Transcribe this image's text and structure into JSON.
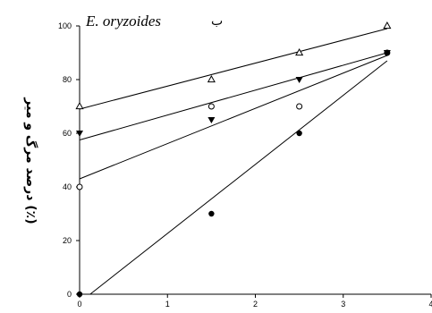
{
  "chart_data": {
    "type": "scatter",
    "title": "E. oryzoides",
    "panel_label": "ب",
    "xlabel": "",
    "ylabel": "درصد مرگ و میر (٪)",
    "xlim": [
      0,
      4
    ],
    "ylim": [
      0,
      100
    ],
    "x_ticks": [
      0,
      1,
      2,
      3,
      4
    ],
    "y_ticks": [
      0,
      20,
      40,
      60,
      80,
      100
    ],
    "grid": false,
    "series": [
      {
        "marker": "open-triangle",
        "points": [
          [
            0,
            70
          ],
          [
            1.5,
            80
          ],
          [
            2.5,
            90
          ],
          [
            3.5,
            100
          ]
        ],
        "fit_line": [
          [
            0,
            69
          ],
          [
            3.5,
            99
          ]
        ]
      },
      {
        "marker": "open-circle",
        "points": [
          [
            0,
            40
          ],
          [
            1.5,
            70
          ],
          [
            2.5,
            70
          ],
          [
            3.5,
            90
          ]
        ],
        "fit_line": [
          [
            0,
            57.5
          ],
          [
            3.5,
            90
          ]
        ]
      },
      {
        "marker": "filled-down-triangle",
        "points": [
          [
            0,
            60
          ],
          [
            1.5,
            65
          ],
          [
            2.5,
            80
          ],
          [
            3.5,
            90
          ]
        ],
        "fit_line": [
          [
            0,
            43
          ],
          [
            3.5,
            89
          ]
        ]
      },
      {
        "marker": "filled-circle",
        "points": [
          [
            0,
            0
          ],
          [
            1.5,
            30
          ],
          [
            2.5,
            60
          ],
          [
            3.5,
            90
          ]
        ],
        "fit_line": [
          [
            0.12,
            0
          ],
          [
            3.5,
            87
          ]
        ]
      }
    ]
  }
}
